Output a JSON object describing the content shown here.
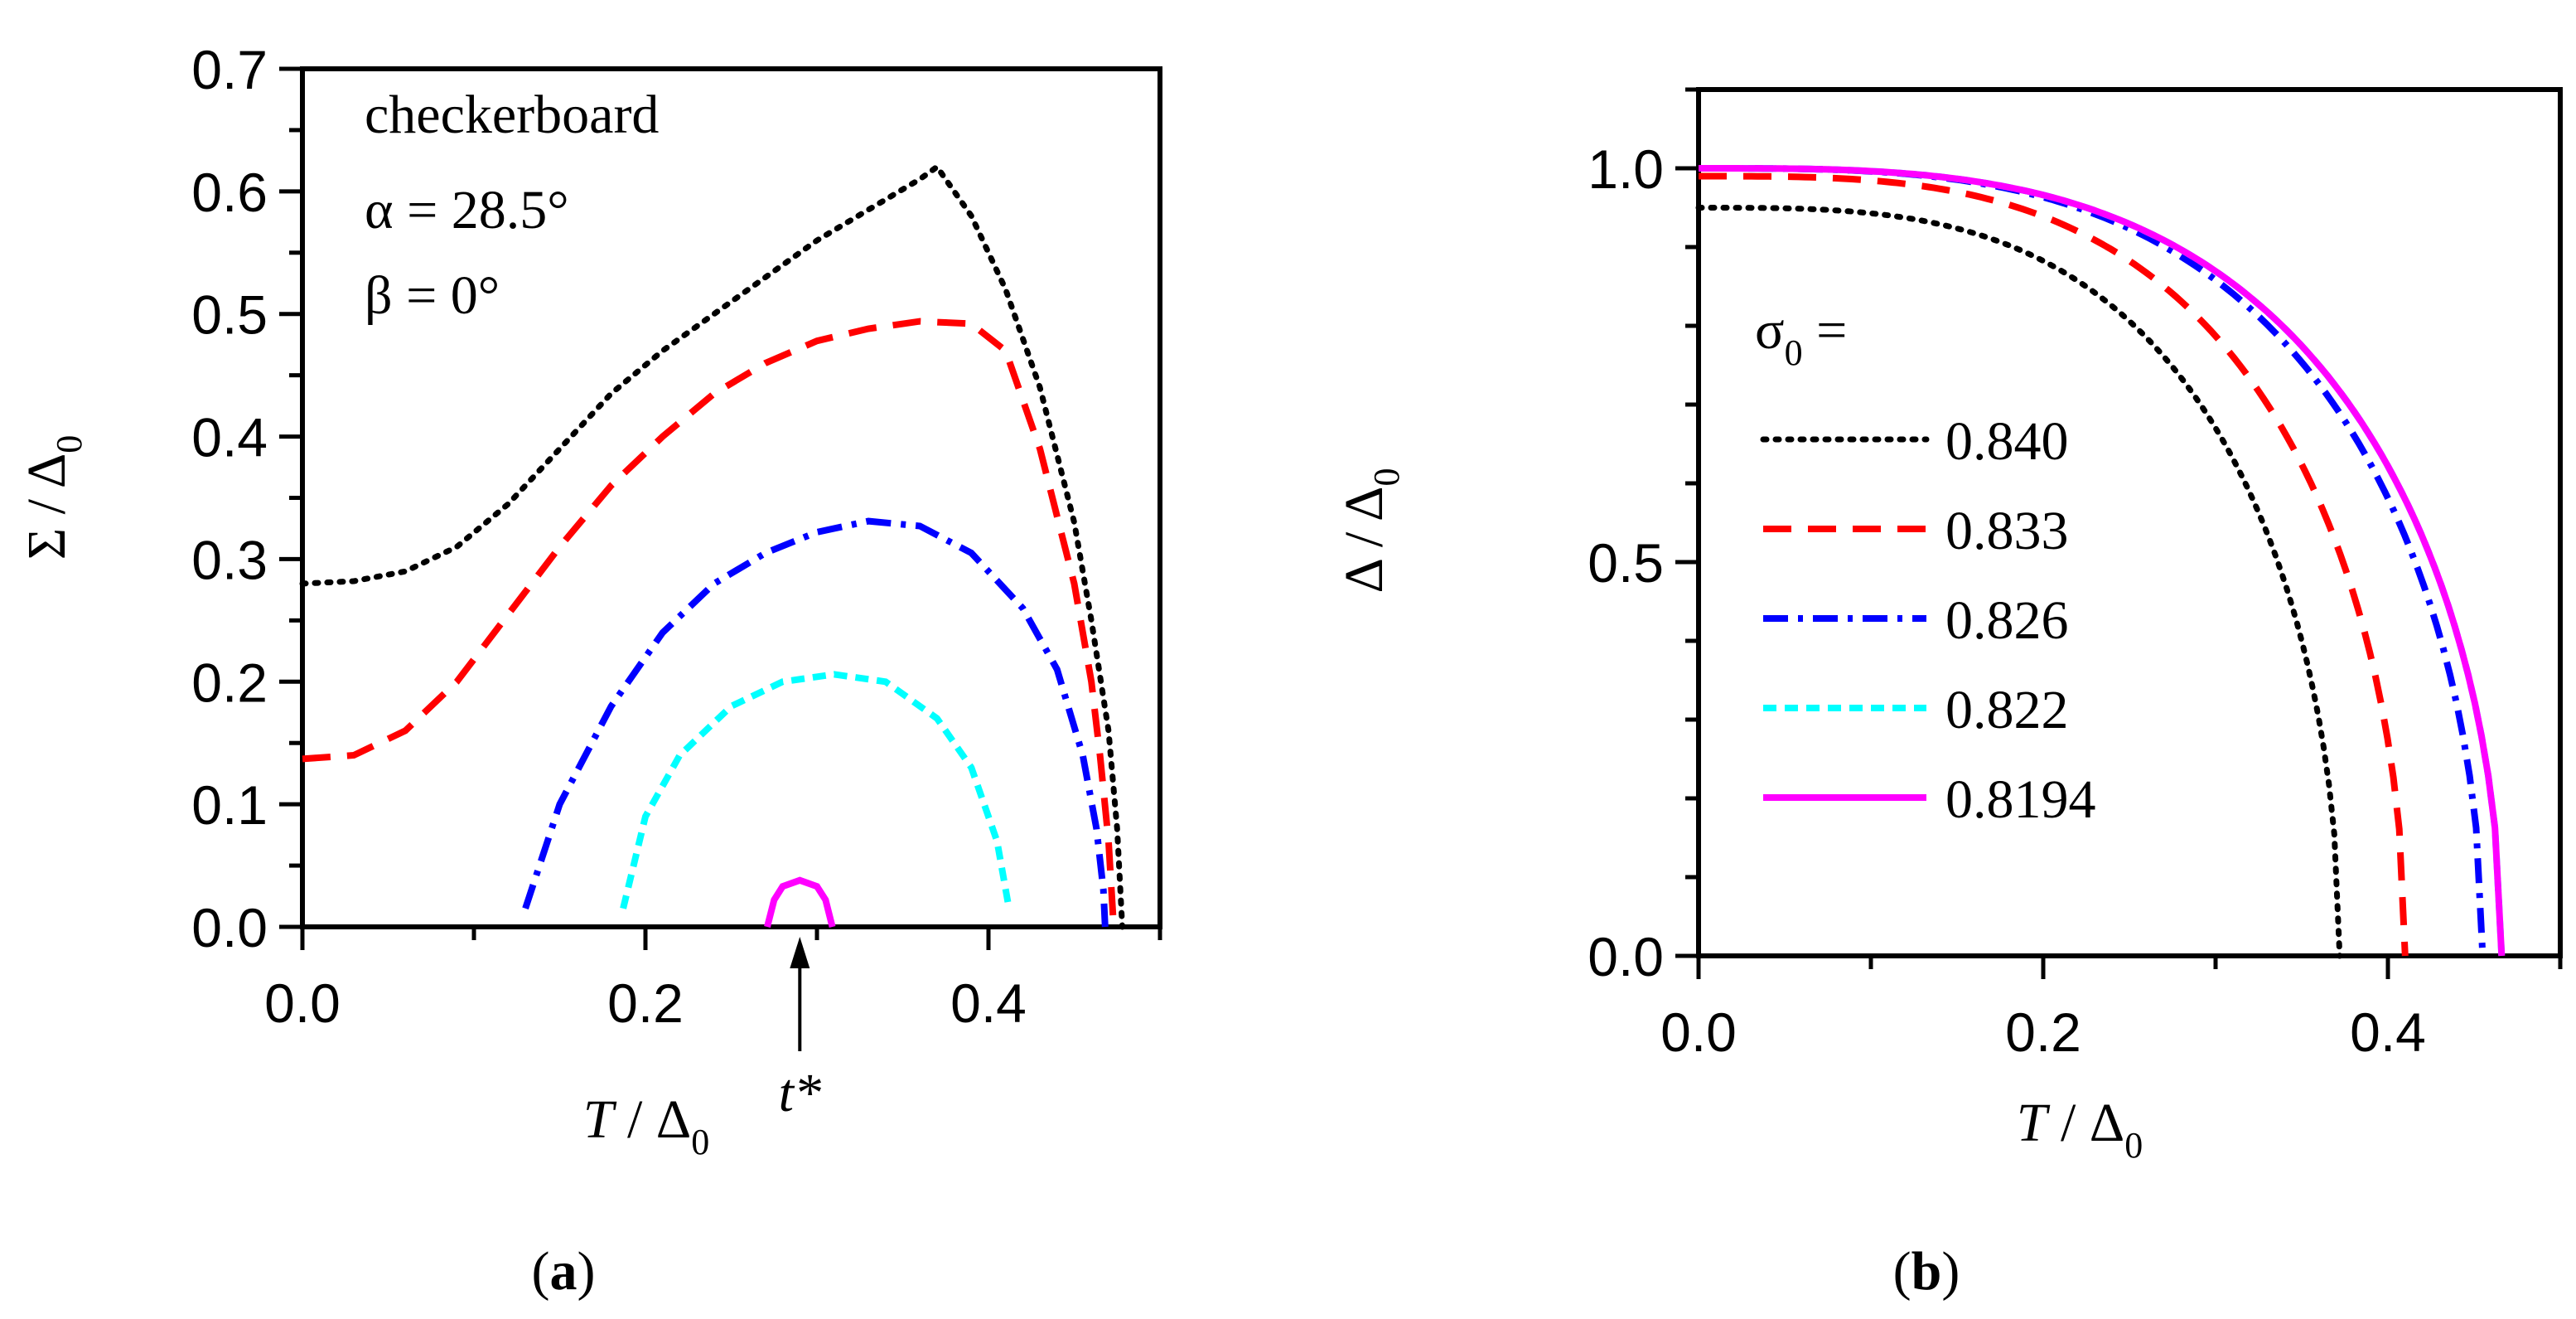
{
  "chart_data": [
    {
      "type": "line",
      "panel_label": "(a)",
      "panel_letter": "a",
      "xlabel": {
        "main": "T",
        "sep": " / Δ",
        "sub": "0"
      },
      "ylabel": {
        "main": "Σ / Δ",
        "sub": "0"
      },
      "xlim": [
        0.0,
        0.5
      ],
      "ylim": [
        0.0,
        0.7
      ],
      "xticks": [
        0.0,
        0.2,
        0.4
      ],
      "xtick_labels": [
        "0.0",
        "0.2",
        "0.4"
      ],
      "yticks": [
        0.0,
        0.1,
        0.2,
        0.3,
        0.4,
        0.5,
        0.6,
        0.7
      ],
      "ytick_labels": [
        "0.0",
        "0.1",
        "0.2",
        "0.3",
        "0.4",
        "0.5",
        "0.6",
        "0.7"
      ],
      "annotations": {
        "lattice": "checkerboard",
        "alpha": "α = 28.5°",
        "beta": "β = 0°",
        "arrow_label": "t*",
        "arrow_x": 0.29
      },
      "series": [
        {
          "name": "0.840",
          "color": "#000000",
          "dash": "dot",
          "x": [
            0.0,
            0.03,
            0.06,
            0.09,
            0.12,
            0.15,
            0.18,
            0.21,
            0.24,
            0.27,
            0.3,
            0.33,
            0.36,
            0.37,
            0.39,
            0.41,
            0.43,
            0.45,
            0.46,
            0.47,
            0.475,
            0.478
          ],
          "y": [
            0.28,
            0.282,
            0.29,
            0.31,
            0.345,
            0.39,
            0.435,
            0.47,
            0.5,
            0.53,
            0.56,
            0.585,
            0.61,
            0.62,
            0.58,
            0.52,
            0.44,
            0.33,
            0.25,
            0.16,
            0.08,
            0.0
          ]
        },
        {
          "name": "0.833",
          "color": "#ff0000",
          "dash": "dash",
          "x": [
            0.0,
            0.03,
            0.06,
            0.09,
            0.12,
            0.15,
            0.18,
            0.21,
            0.24,
            0.27,
            0.3,
            0.33,
            0.36,
            0.39,
            0.41,
            0.43,
            0.45,
            0.46,
            0.465,
            0.47,
            0.473
          ],
          "y": [
            0.137,
            0.14,
            0.16,
            0.2,
            0.255,
            0.31,
            0.36,
            0.4,
            0.435,
            0.46,
            0.478,
            0.488,
            0.494,
            0.492,
            0.47,
            0.39,
            0.28,
            0.2,
            0.14,
            0.07,
            0.0
          ]
        },
        {
          "name": "0.826",
          "color": "#0000ff",
          "dash": "dashdot",
          "x": [
            0.13,
            0.15,
            0.18,
            0.21,
            0.24,
            0.27,
            0.3,
            0.33,
            0.36,
            0.39,
            0.42,
            0.44,
            0.455,
            0.463,
            0.467,
            0.468
          ],
          "y": [
            0.015,
            0.1,
            0.18,
            0.24,
            0.28,
            0.305,
            0.322,
            0.331,
            0.327,
            0.305,
            0.26,
            0.21,
            0.14,
            0.08,
            0.03,
            0.0
          ]
        },
        {
          "name": "0.822",
          "color": "#00ffff",
          "dash": "shortdash",
          "x": [
            0.187,
            0.2,
            0.22,
            0.25,
            0.28,
            0.31,
            0.34,
            0.37,
            0.39,
            0.405,
            0.412
          ],
          "y": [
            0.015,
            0.09,
            0.14,
            0.18,
            0.2,
            0.206,
            0.2,
            0.17,
            0.13,
            0.07,
            0.015
          ]
        },
        {
          "name": "0.8194",
          "color": "#ff00ff",
          "dash": "solid",
          "x": [
            0.271,
            0.275,
            0.28,
            0.29,
            0.3,
            0.305,
            0.309
          ],
          "y": [
            0.0,
            0.022,
            0.033,
            0.038,
            0.033,
            0.022,
            0.0
          ]
        }
      ]
    },
    {
      "type": "line",
      "panel_label": "(b)",
      "panel_letter": "b",
      "xlabel": {
        "main": "T",
        "sep": " / Δ",
        "sub": "0"
      },
      "ylabel": {
        "main": "Δ / Δ",
        "sub": "0"
      },
      "xlim": [
        0.0,
        0.5
      ],
      "ylim": [
        0.0,
        1.1
      ],
      "xticks": [
        0.0,
        0.2,
        0.4
      ],
      "xtick_labels": [
        "0.0",
        "0.2",
        "0.4"
      ],
      "yticks": [
        0.0,
        0.5,
        1.0
      ],
      "ytick_labels": [
        "0.0",
        "0.5",
        "1.0"
      ],
      "legend": {
        "title_main": "σ",
        "title_sub": "0",
        "title_suffix": " =",
        "placement": "center-left"
      },
      "series": [
        {
          "name": "0.840",
          "color": "#000000",
          "dash": "dot",
          "tc": 0.372,
          "d0": 0.95
        },
        {
          "name": "0.833",
          "color": "#ff0000",
          "dash": "dash",
          "tc": 0.41,
          "d0": 0.99
        },
        {
          "name": "0.826",
          "color": "#0000ff",
          "dash": "dashdot",
          "tc": 0.455,
          "d0": 1.0
        },
        {
          "name": "0.822",
          "color": "#00ffff",
          "dash": "shortdash",
          "tc": 0.466,
          "d0": 1.0
        },
        {
          "name": "0.8194",
          "color": "#ff00ff",
          "dash": "solid",
          "tc": 0.466,
          "d0": 1.0
        }
      ]
    }
  ]
}
